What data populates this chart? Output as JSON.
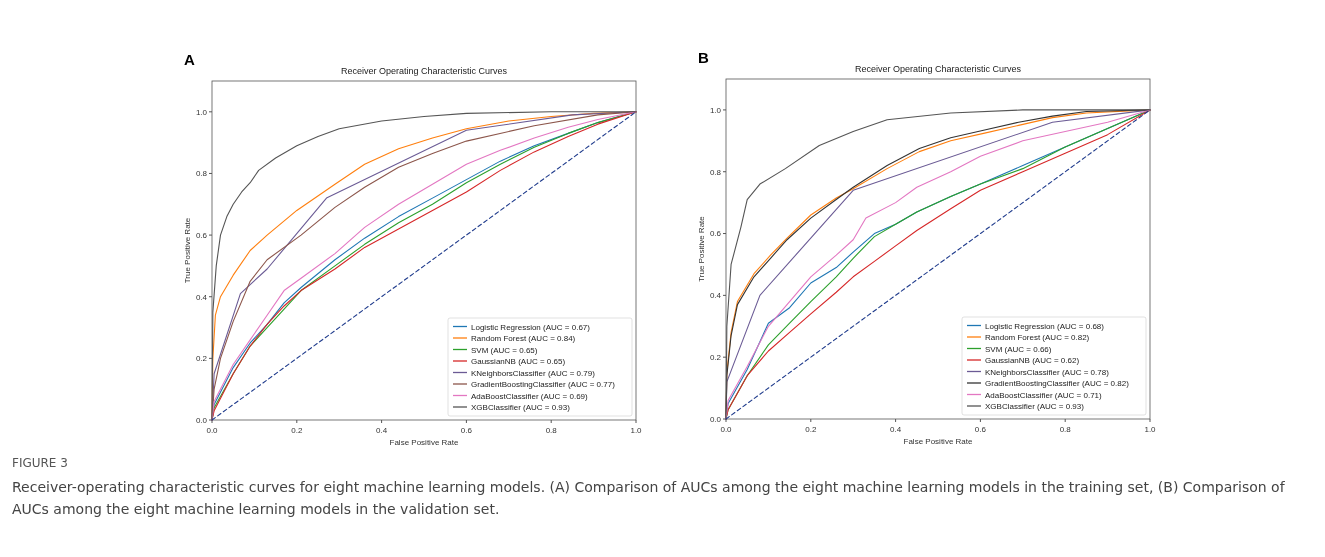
{
  "chart_data": [
    {
      "type": "line",
      "title": "Receiver Operating Characteristic Curves",
      "xlabel": "False Positive Rate",
      "ylabel": "True Positive Rate",
      "xlim": [
        0,
        1
      ],
      "ylim": [
        0,
        1.1
      ],
      "xticks": [
        {
          "value": 0,
          "label": "0.0"
        },
        {
          "value": 0.2,
          "label": "0.2"
        },
        {
          "value": 0.4,
          "label": "0.4"
        },
        {
          "value": 0.6,
          "label": "0.6"
        },
        {
          "value": 0.8,
          "label": "0.8"
        },
        {
          "value": 1,
          "label": "1.0"
        }
      ],
      "yticks": [
        {
          "value": 0,
          "label": "0.0"
        },
        {
          "value": 0.2,
          "label": "0.2"
        },
        {
          "value": 0.4,
          "label": "0.4"
        },
        {
          "value": 0.6,
          "label": "0.6"
        },
        {
          "value": 0.8,
          "label": "0.8"
        },
        {
          "value": 1,
          "label": "1.0"
        }
      ],
      "grid": false,
      "legend": "bottom right",
      "marker": "none",
      "line_style": "solid",
      "annotations": [
        "A",
        "FIGURE 3",
        "Receiver-operating characteristic curves for eight machine learning models. (A) Comparison of AUCs among the eight machine learning models in the training set, (B) Comparison of AUCs among the eight machine learning models in the validation set."
      ],
      "series": [
        {
          "name": "Logistic Regression (AUC = 0.67)",
          "color": "#1f77b4",
          "x": [
            0,
            0.005,
            0.05,
            0.09,
            0.13,
            0.17,
            0.21,
            0.29,
            0.36,
            0.44,
            0.52,
            0.6,
            0.68,
            0.76,
            0.84,
            0.91,
            1
          ],
          "values": [
            0,
            0.05,
            0.17,
            0.25,
            0.31,
            0.38,
            0.43,
            0.52,
            0.59,
            0.66,
            0.72,
            0.78,
            0.84,
            0.89,
            0.93,
            0.965,
            1
          ]
        },
        {
          "name": "Random Forest (AUC = 0.84)",
          "color": "#ff7f0e",
          "x": [
            0,
            0.002,
            0.008,
            0.02,
            0.05,
            0.09,
            0.13,
            0.2,
            0.29,
            0.36,
            0.44,
            0.52,
            0.6,
            0.7,
            0.8,
            0.9,
            1
          ],
          "values": [
            0,
            0.2,
            0.34,
            0.4,
            0.47,
            0.55,
            0.6,
            0.68,
            0.765,
            0.83,
            0.88,
            0.915,
            0.945,
            0.97,
            0.985,
            0.995,
            1
          ]
        },
        {
          "name": "SVM (AUC = 0.65)",
          "color": "#2ca02c",
          "x": [
            0,
            0.005,
            0.05,
            0.09,
            0.13,
            0.17,
            0.21,
            0.29,
            0.36,
            0.44,
            0.52,
            0.6,
            0.68,
            0.76,
            0.84,
            0.91,
            1
          ],
          "values": [
            0,
            0.04,
            0.15,
            0.24,
            0.3,
            0.36,
            0.42,
            0.5,
            0.57,
            0.64,
            0.7,
            0.77,
            0.83,
            0.885,
            0.93,
            0.965,
            1
          ]
        },
        {
          "name": "GaussianNB (AUC = 0.65)",
          "color": "#d62728",
          "x": [
            0,
            0.005,
            0.05,
            0.09,
            0.13,
            0.17,
            0.21,
            0.29,
            0.36,
            0.44,
            0.52,
            0.6,
            0.68,
            0.76,
            0.84,
            0.91,
            1
          ],
          "values": [
            0,
            0.03,
            0.15,
            0.24,
            0.31,
            0.37,
            0.42,
            0.49,
            0.56,
            0.62,
            0.68,
            0.74,
            0.81,
            0.87,
            0.92,
            0.96,
            1
          ]
        },
        {
          "name": "KNeighborsClassifier (AUC = 0.79)",
          "color": "#6b5b95",
          "x": [
            0,
            0.005,
            0.067,
            0.13,
            0.27,
            0.6,
            0.85,
            1
          ],
          "values": [
            0,
            0.15,
            0.41,
            0.49,
            0.72,
            0.94,
            0.99,
            1
          ]
        },
        {
          "name": "GradientBoostingClassifier (AUC = 0.77)",
          "color": "#8c564b",
          "x": [
            0,
            0.005,
            0.02,
            0.05,
            0.09,
            0.13,
            0.21,
            0.29,
            0.36,
            0.44,
            0.52,
            0.6,
            0.76,
            0.91,
            1
          ],
          "values": [
            0,
            0.1,
            0.2,
            0.32,
            0.45,
            0.52,
            0.6,
            0.69,
            0.755,
            0.82,
            0.865,
            0.905,
            0.955,
            0.99,
            1
          ]
        },
        {
          "name": "AdaBoostClassifier (AUC = 0.69)",
          "color": "#e377c2",
          "x": [
            0,
            0.005,
            0.05,
            0.09,
            0.13,
            0.17,
            0.21,
            0.29,
            0.36,
            0.44,
            0.52,
            0.6,
            0.68,
            0.76,
            0.84,
            0.91,
            1
          ],
          "values": [
            0,
            0.06,
            0.18,
            0.26,
            0.34,
            0.42,
            0.46,
            0.54,
            0.625,
            0.7,
            0.765,
            0.83,
            0.875,
            0.915,
            0.95,
            0.975,
            1
          ]
        },
        {
          "name": "XGBClassifier (AUC = 0.93)",
          "color": "#555555",
          "x": [
            0,
            0.002,
            0.01,
            0.02,
            0.035,
            0.05,
            0.07,
            0.09,
            0.11,
            0.15,
            0.2,
            0.25,
            0.3,
            0.4,
            0.5,
            0.6,
            0.8,
            1
          ],
          "values": [
            0,
            0.35,
            0.5,
            0.6,
            0.66,
            0.7,
            0.74,
            0.77,
            0.81,
            0.85,
            0.89,
            0.92,
            0.945,
            0.97,
            0.985,
            0.995,
            1,
            1
          ]
        },
        {
          "color": "#1f3b8c",
          "line_style": "dashed",
          "x": [
            0,
            1
          ],
          "values": [
            0,
            1
          ]
        }
      ]
    },
    {
      "type": "line",
      "title": "Receiver Operating Characteristic Curves",
      "xlabel": "False Positive Rate",
      "ylabel": "True Positive Rate",
      "xlim": [
        0,
        1
      ],
      "ylim": [
        0,
        1.1
      ],
      "xticks": [
        {
          "value": 0,
          "label": "0.0"
        },
        {
          "value": 0.2,
          "label": "0.2"
        },
        {
          "value": 0.4,
          "label": "0.4"
        },
        {
          "value": 0.6,
          "label": "0.6"
        },
        {
          "value": 0.8,
          "label": "0.8"
        },
        {
          "value": 1,
          "label": "1.0"
        }
      ],
      "yticks": [
        {
          "value": 0,
          "label": "0.0"
        },
        {
          "value": 0.2,
          "label": "0.2"
        },
        {
          "value": 0.4,
          "label": "0.4"
        },
        {
          "value": 0.6,
          "label": "0.6"
        },
        {
          "value": 0.8,
          "label": "0.8"
        },
        {
          "value": 1,
          "label": "1.0"
        }
      ],
      "grid": false,
      "legend": "bottom right",
      "marker": "none",
      "line_style": "solid",
      "annotations": [
        "B"
      ],
      "series": [
        {
          "name": "Logistic Regression (AUC = 0.68)",
          "color": "#1f77b4",
          "x": [
            0,
            0.005,
            0.05,
            0.1,
            0.15,
            0.2,
            0.26,
            0.3,
            0.35,
            0.4,
            0.45,
            0.53,
            0.6,
            0.7,
            0.8,
            0.9,
            1
          ],
          "values": [
            0,
            0.05,
            0.16,
            0.31,
            0.36,
            0.44,
            0.49,
            0.54,
            0.6,
            0.63,
            0.67,
            0.72,
            0.76,
            0.82,
            0.88,
            0.94,
            1
          ]
        },
        {
          "name": "Random Forest (AUC = 0.82)",
          "color": "#ff7f0e",
          "x": [
            0,
            0.002,
            0.012,
            0.027,
            0.066,
            0.105,
            0.144,
            0.2,
            0.26,
            0.3,
            0.38,
            0.456,
            0.53,
            0.61,
            0.69,
            0.77,
            0.85,
            1
          ],
          "values": [
            0,
            0.15,
            0.28,
            0.38,
            0.47,
            0.53,
            0.585,
            0.66,
            0.715,
            0.745,
            0.81,
            0.865,
            0.9,
            0.925,
            0.95,
            0.975,
            0.99,
            1
          ]
        },
        {
          "name": "SVM (AUC = 0.66)",
          "color": "#2ca02c",
          "x": [
            0,
            0.005,
            0.05,
            0.1,
            0.15,
            0.2,
            0.26,
            0.3,
            0.35,
            0.4,
            0.45,
            0.53,
            0.6,
            0.7,
            0.8,
            0.9,
            1
          ],
          "values": [
            0,
            0.03,
            0.14,
            0.24,
            0.31,
            0.38,
            0.46,
            0.52,
            0.59,
            0.63,
            0.67,
            0.72,
            0.76,
            0.81,
            0.88,
            0.94,
            1
          ]
        },
        {
          "name": "GaussianNB (AUC = 0.62)",
          "color": "#d62728",
          "x": [
            0,
            0.005,
            0.05,
            0.1,
            0.15,
            0.2,
            0.26,
            0.3,
            0.35,
            0.4,
            0.45,
            0.53,
            0.6,
            0.7,
            0.8,
            0.9,
            1
          ],
          "values": [
            0,
            0.03,
            0.14,
            0.22,
            0.28,
            0.34,
            0.41,
            0.46,
            0.51,
            0.56,
            0.61,
            0.68,
            0.74,
            0.8,
            0.86,
            0.92,
            1
          ]
        },
        {
          "name": "KNeighborsClassifier (AUC = 0.78)",
          "color": "#6b5b95",
          "x": [
            0,
            0.002,
            0.08,
            0.3,
            0.77,
            1
          ],
          "values": [
            0,
            0.12,
            0.4,
            0.74,
            0.96,
            1
          ]
        },
        {
          "name": "GradientBoostingClassifier (AUC = 0.82)",
          "color": "#333333",
          "x": [
            0,
            0.002,
            0.012,
            0.027,
            0.066,
            0.105,
            0.144,
            0.2,
            0.26,
            0.3,
            0.38,
            0.456,
            0.53,
            0.61,
            0.69,
            0.77,
            0.85,
            1
          ],
          "values": [
            0,
            0.14,
            0.27,
            0.37,
            0.46,
            0.52,
            0.58,
            0.65,
            0.71,
            0.75,
            0.82,
            0.875,
            0.91,
            0.935,
            0.96,
            0.98,
            0.995,
            1
          ]
        },
        {
          "name": "AdaBoostClassifier (AUC = 0.71)",
          "color": "#e377c2",
          "x": [
            0,
            0.005,
            0.05,
            0.1,
            0.15,
            0.2,
            0.26,
            0.3,
            0.33,
            0.4,
            0.45,
            0.53,
            0.6,
            0.7,
            0.8,
            0.9,
            1
          ],
          "values": [
            0,
            0.06,
            0.17,
            0.3,
            0.38,
            0.46,
            0.53,
            0.58,
            0.65,
            0.7,
            0.75,
            0.8,
            0.85,
            0.9,
            0.93,
            0.96,
            1
          ]
        },
        {
          "name": "XGBClassifier (AUC = 0.93)",
          "color": "#555555",
          "x": [
            0,
            0.002,
            0.012,
            0.035,
            0.05,
            0.08,
            0.14,
            0.22,
            0.3,
            0.38,
            0.53,
            0.7,
            1
          ],
          "values": [
            0,
            0.3,
            0.5,
            0.62,
            0.71,
            0.76,
            0.81,
            0.885,
            0.93,
            0.968,
            0.99,
            1,
            1
          ]
        },
        {
          "color": "#1f3b8c",
          "line_style": "dashed",
          "x": [
            0,
            1
          ],
          "values": [
            0,
            1
          ]
        }
      ]
    }
  ]
}
